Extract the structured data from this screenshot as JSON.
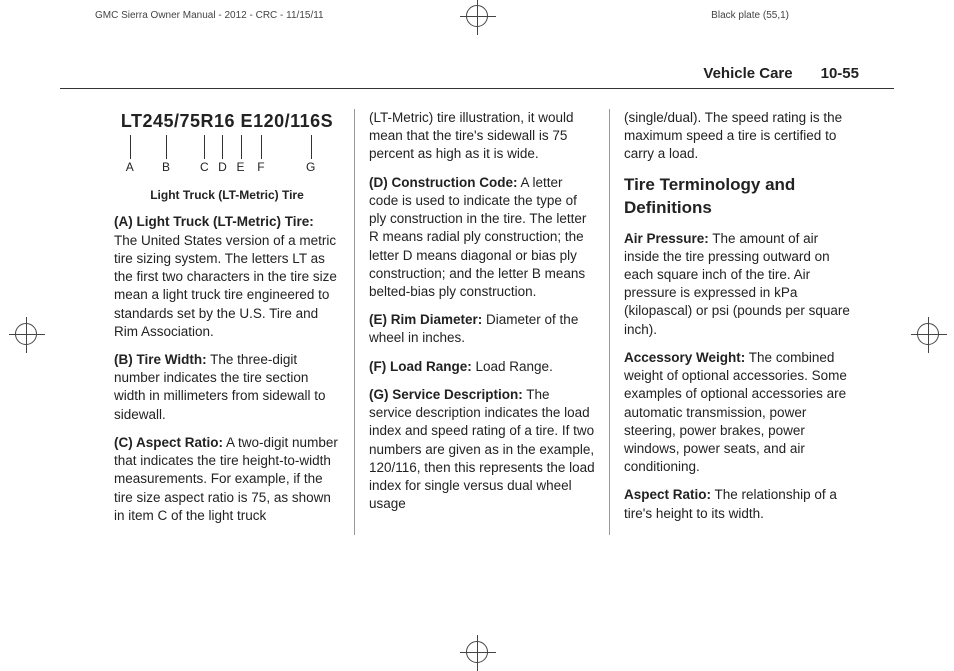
{
  "header": {
    "left": "GMC Sierra Owner Manual - 2012 - CRC - 11/15/11",
    "right": "Black plate (55,1)"
  },
  "running": {
    "section": "Vehicle Care",
    "page": "10-55"
  },
  "diagram": {
    "code": "LT245/75R16 E120/116S",
    "labels": [
      "A",
      "B",
      "C",
      "D",
      "E",
      "F",
      "G"
    ],
    "positions": [
      7,
      23,
      40,
      48,
      56,
      65,
      87
    ],
    "caption": "Light Truck (LT-Metric) Tire"
  },
  "col1": [
    {
      "lead": "(A) Light Truck (LT-Metric) Tire:",
      "body": "  The United States version of a metric tire sizing system. The letters LT as the first two characters in the tire size mean a light truck tire engineered to standards set by the U.S. Tire and Rim Association."
    },
    {
      "lead": "(B) Tire Width:",
      "body": "  The three-digit number indicates the tire section width in millimeters from sidewall to sidewall."
    },
    {
      "lead": "(C) Aspect Ratio:",
      "body": "  A two-digit number that indicates the tire height-to-width measurements. For example, if the tire size aspect ratio is 75, as shown in item C of the light truck"
    }
  ],
  "col2": [
    {
      "lead": "",
      "body": "(LT-Metric) tire illustration, it would mean that the tire's sidewall is 75 percent as high as it is wide."
    },
    {
      "lead": "(D) Construction Code:",
      "body": "  A letter code is used to indicate the type of ply construction in the tire. The letter R means radial ply construction; the letter D means diagonal or bias ply construction; and the letter B means belted-bias ply construction."
    },
    {
      "lead": "(E) Rim Diameter:",
      "body": "  Diameter of the wheel in inches."
    },
    {
      "lead": "(F) Load Range:",
      "body": "  Load Range."
    },
    {
      "lead": "(G) Service Description:",
      "body": "  The service description indicates the load index and speed rating of a tire. If two numbers are given as in the example, 120/116, then this represents the load index for single versus dual wheel usage"
    }
  ],
  "col3_intro": "(single/dual). The speed rating is the maximum speed a tire is certified to carry a load.",
  "col3_heading": "Tire Terminology and Definitions",
  "col3": [
    {
      "lead": "Air Pressure:",
      "body": "  The amount of air inside the tire pressing outward on each square inch of the tire. Air pressure is expressed in kPa (kilopascal) or psi (pounds per square inch)."
    },
    {
      "lead": "Accessory Weight:",
      "body": "  The combined weight of optional accessories. Some examples of optional accessories are automatic transmission, power steering, power brakes, power windows, power seats, and air conditioning."
    },
    {
      "lead": "Aspect Ratio:",
      "body": "  The relationship of a tire's height to its width."
    }
  ]
}
